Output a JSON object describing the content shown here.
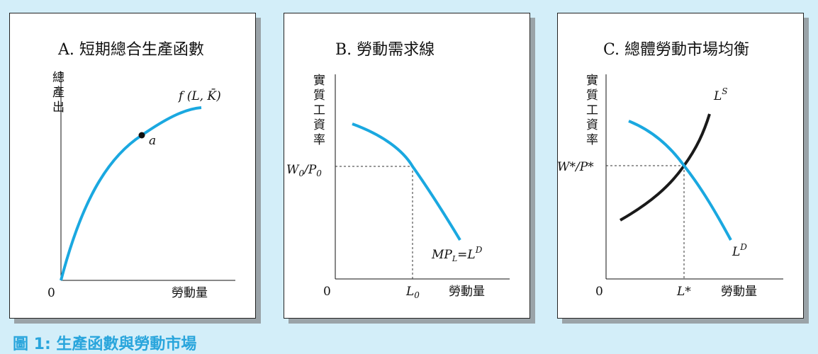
{
  "caption": "圖 1: 生產函數與勞動市場",
  "colors": {
    "background": "#d3eef9",
    "curve_blue": "#1aa8e0",
    "curve_black": "#1a1a1a",
    "caption": "#29a5dc"
  },
  "panel_a": {
    "title": "A. 短期總合生產函數",
    "ylabel": [
      "總",
      "產",
      "出"
    ],
    "origin": "0",
    "xlabel": "勞動量",
    "curve_label": "f (L, K̄)",
    "point_label": "a"
  },
  "panel_b": {
    "title": "B. 勞動需求線",
    "ylabel": [
      "實",
      "質",
      "工",
      "資",
      "率"
    ],
    "origin": "0",
    "xlabel": "勞動量",
    "wage_label": "W₀/P₀",
    "labor_label": "L₀",
    "curve_label": "MPL=LD"
  },
  "panel_c": {
    "title": "C. 總體勞動市場均衡",
    "ylabel": [
      "實",
      "質",
      "工",
      "資",
      "率"
    ],
    "origin": "0",
    "xlabel": "勞動量",
    "wage_label": "W*/P*",
    "labor_label": "L*",
    "supply_label": "LS",
    "demand_label": "LD"
  }
}
